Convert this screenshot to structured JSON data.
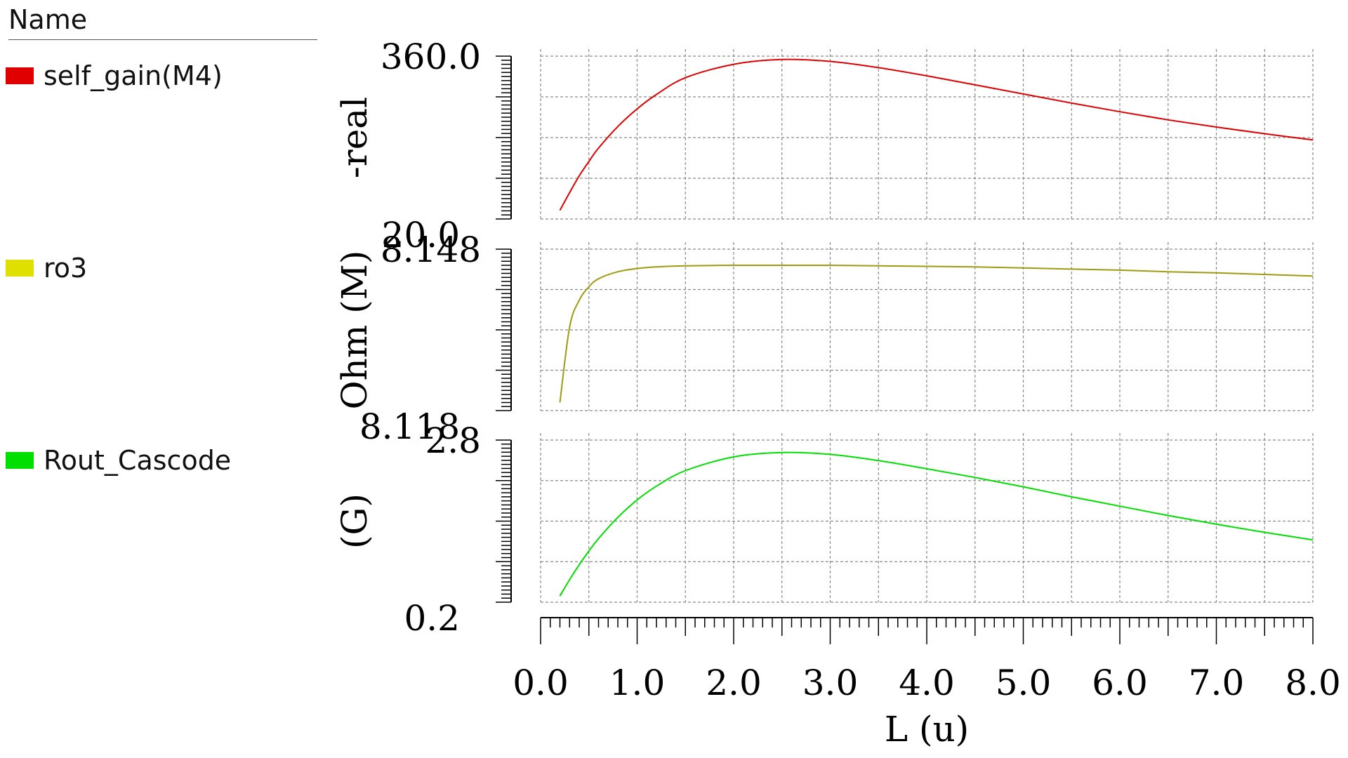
{
  "legend": {
    "header": "Name",
    "entries": [
      {
        "label": "self_gain(M4)",
        "color": "#e00000"
      },
      {
        "label": "ro3",
        "color": "#e0e000"
      },
      {
        "label": "Rout_Cascode",
        "color": "#00e000"
      }
    ]
  },
  "chart_data": {
    "type": "line",
    "grid": true,
    "xlabel": "L (u)",
    "xlim": [
      0.0,
      8.0
    ],
    "xticks": [
      "0.0",
      "1.0",
      "2.0",
      "3.0",
      "4.0",
      "5.0",
      "6.0",
      "7.0",
      "8.0"
    ],
    "x": [
      0.2,
      0.3,
      0.4,
      0.5,
      0.6,
      0.8,
      1.0,
      1.2,
      1.5,
      2.0,
      2.5,
      3.0,
      3.5,
      4.0,
      4.5,
      5.0,
      5.5,
      6.0,
      6.5,
      7.0,
      7.5,
      8.0
    ],
    "panels": [
      {
        "series_name": "self_gain(M4)",
        "color": "#e00000",
        "ylabel": "-real",
        "ylim": [
          20.0,
          360.0
        ],
        "ytick_top": "360.0",
        "ytick_bottom": "20.0",
        "values": [
          38,
          75,
          110,
          140,
          168,
          213,
          250,
          280,
          315,
          343,
          353,
          349,
          336,
          319,
          300,
          281,
          262,
          244,
          227,
          212,
          198,
          185
        ]
      },
      {
        "series_name": "ro3",
        "color": "#9c9c10",
        "ylabel": "Ohm (M)",
        "ylim": [
          8.118,
          8.148
        ],
        "ytick_top": "8.148",
        "ytick_bottom": "8.118",
        "values": [
          8.1195,
          8.1335,
          8.1385,
          8.141,
          8.1425,
          8.1438,
          8.1444,
          8.1447,
          8.1449,
          8.145,
          8.145,
          8.145,
          8.1449,
          8.1448,
          8.1447,
          8.1445,
          8.1443,
          8.1441,
          8.1438,
          8.1436,
          8.1433,
          8.143
        ]
      },
      {
        "series_name": "Rout_Cascode",
        "color": "#00e000",
        "ylabel": "(G)",
        "ylim": [
          0.2,
          2.8
        ],
        "ytick_top": "2.8",
        "ytick_bottom": "0.2",
        "values": [
          0.3,
          0.56,
          0.8,
          1.02,
          1.22,
          1.56,
          1.84,
          2.06,
          2.31,
          2.53,
          2.6,
          2.57,
          2.47,
          2.34,
          2.2,
          2.05,
          1.89,
          1.74,
          1.59,
          1.45,
          1.32,
          1.2
        ]
      }
    ]
  }
}
